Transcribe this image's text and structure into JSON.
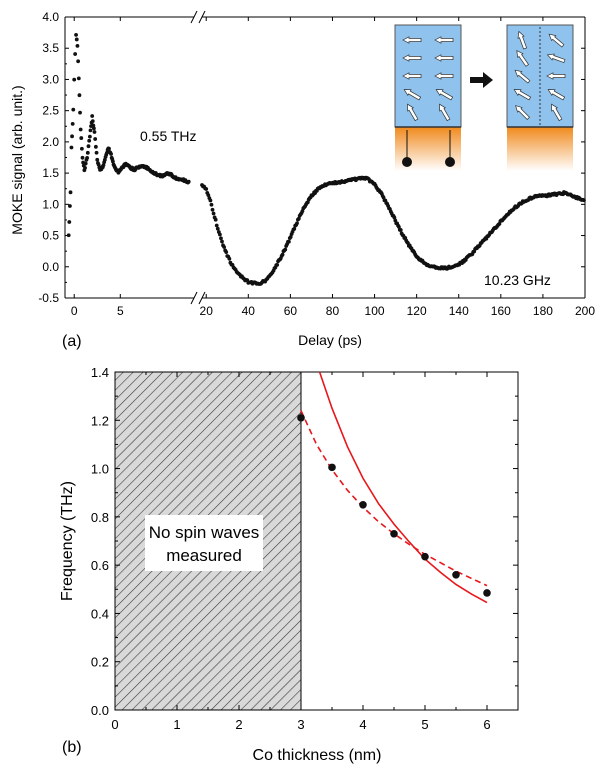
{
  "chart_data": [
    {
      "panel": "(a)",
      "type": "scatter",
      "xlabel": "Delay (ps)",
      "ylabel": "MOKE signal (arb. unit.)",
      "xaxis_broken": true,
      "x_segments": [
        {
          "range": [
            -1,
            13
          ],
          "ticks": [
            0,
            5
          ]
        },
        {
          "range": [
            18,
            200
          ],
          "ticks": [
            20,
            40,
            60,
            80,
            100,
            120,
            140,
            160,
            180,
            200
          ]
        }
      ],
      "ylim": [
        -0.5,
        4.0
      ],
      "yticks": [
        "-0.5",
        "0.0",
        "0.5",
        "1.0",
        "1.5",
        "2.0",
        "2.5",
        "3.0",
        "3.5",
        "4.0"
      ],
      "annotations": [
        "0.55 THz",
        "10.23 GHz"
      ],
      "segment1_points": [
        [
          -0.6,
          0.5
        ],
        [
          -0.4,
          1.2
        ],
        [
          -0.3,
          1.9
        ],
        [
          -0.1,
          2.5
        ],
        [
          0.0,
          3.0
        ],
        [
          0.1,
          3.4
        ],
        [
          0.2,
          3.7
        ],
        [
          0.35,
          3.55
        ],
        [
          0.5,
          3.0
        ],
        [
          0.7,
          2.2
        ],
        [
          0.9,
          1.75
        ],
        [
          1.1,
          1.55
        ],
        [
          1.4,
          1.75
        ],
        [
          1.7,
          2.1
        ],
        [
          1.95,
          2.4
        ],
        [
          2.2,
          2.15
        ],
        [
          2.5,
          1.7
        ],
        [
          2.8,
          1.55
        ],
        [
          3.1,
          1.6
        ],
        [
          3.4,
          1.75
        ],
        [
          3.7,
          1.9
        ],
        [
          4.0,
          1.8
        ],
        [
          4.4,
          1.58
        ],
        [
          4.8,
          1.52
        ],
        [
          5.2,
          1.58
        ],
        [
          5.6,
          1.65
        ],
        [
          6.0,
          1.6
        ],
        [
          6.5,
          1.55
        ],
        [
          7.0,
          1.6
        ],
        [
          7.5,
          1.6
        ],
        [
          8.0,
          1.58
        ],
        [
          8.5,
          1.52
        ],
        [
          9.0,
          1.48
        ],
        [
          9.5,
          1.45
        ],
        [
          10.0,
          1.5
        ],
        [
          10.5,
          1.48
        ],
        [
          11.0,
          1.42
        ],
        [
          11.5,
          1.4
        ],
        [
          12.0,
          1.38
        ],
        [
          12.5,
          1.35
        ]
      ],
      "segment2_points": [
        [
          18,
          1.3
        ],
        [
          20,
          1.25
        ],
        [
          22,
          1.05
        ],
        [
          24,
          0.8
        ],
        [
          26,
          0.55
        ],
        [
          28,
          0.35
        ],
        [
          30,
          0.18
        ],
        [
          32,
          0.05
        ],
        [
          34,
          -0.05
        ],
        [
          36,
          -0.14
        ],
        [
          38,
          -0.2
        ],
        [
          40,
          -0.24
        ],
        [
          42,
          -0.26
        ],
        [
          44,
          -0.27
        ],
        [
          46,
          -0.26
        ],
        [
          48,
          -0.22
        ],
        [
          50,
          -0.15
        ],
        [
          52,
          -0.05
        ],
        [
          55,
          0.12
        ],
        [
          58,
          0.32
        ],
        [
          61,
          0.55
        ],
        [
          64,
          0.78
        ],
        [
          67,
          0.98
        ],
        [
          70,
          1.13
        ],
        [
          73,
          1.24
        ],
        [
          76,
          1.3
        ],
        [
          80,
          1.34
        ],
        [
          84,
          1.36
        ],
        [
          88,
          1.38
        ],
        [
          92,
          1.41
        ],
        [
          96,
          1.42
        ],
        [
          100,
          1.32
        ],
        [
          103,
          1.18
        ],
        [
          106,
          1.0
        ],
        [
          109,
          0.8
        ],
        [
          112,
          0.6
        ],
        [
          115,
          0.42
        ],
        [
          118,
          0.26
        ],
        [
          121,
          0.13
        ],
        [
          124,
          0.05
        ],
        [
          127,
          0.01
        ],
        [
          130,
          -0.01
        ],
        [
          134,
          -0.02
        ],
        [
          138,
          0.0
        ],
        [
          142,
          0.08
        ],
        [
          146,
          0.2
        ],
        [
          150,
          0.35
        ],
        [
          154,
          0.5
        ],
        [
          158,
          0.65
        ],
        [
          162,
          0.8
        ],
        [
          166,
          0.93
        ],
        [
          170,
          1.03
        ],
        [
          174,
          1.1
        ],
        [
          178,
          1.13
        ],
        [
          182,
          1.14
        ],
        [
          186,
          1.16
        ],
        [
          190,
          1.18
        ],
        [
          194,
          1.14
        ],
        [
          198,
          1.08
        ],
        [
          200,
          1.05
        ]
      ]
    },
    {
      "panel": "(b)",
      "type": "scatter",
      "xlabel": "Co thickness (nm)",
      "ylabel": "Frequency (THz)",
      "xlim": [
        0,
        6.5
      ],
      "ylim": [
        0.0,
        1.4
      ],
      "xticks": [
        "0",
        "1",
        "2",
        "3",
        "4",
        "5",
        "6"
      ],
      "yticks": [
        "0.0",
        "0.2",
        "0.4",
        "0.6",
        "0.8",
        "1.0",
        "1.2",
        "1.4"
      ],
      "shaded_region": {
        "x_from": 0,
        "x_to": 3,
        "label_lines": [
          "No spin waves",
          "measured"
        ]
      },
      "points": {
        "x": [
          3.0,
          3.5,
          4.0,
          4.5,
          5.0,
          5.5,
          6.0
        ],
        "y": [
          1.21,
          1.005,
          0.85,
          0.73,
          0.635,
          0.56,
          0.485
        ]
      },
      "dashed_fit": {
        "x": [
          3.0,
          3.25,
          3.5,
          3.75,
          4.0,
          4.25,
          4.5,
          4.75,
          5.0,
          5.25,
          5.5,
          5.75,
          6.0
        ],
        "y": [
          1.24,
          1.1,
          0.995,
          0.91,
          0.84,
          0.78,
          0.73,
          0.685,
          0.645,
          0.61,
          0.575,
          0.545,
          0.515
        ]
      },
      "solid_fit": {
        "x": [
          3.3,
          3.5,
          3.75,
          4.0,
          4.25,
          4.5,
          4.75,
          5.0,
          5.25,
          5.5,
          5.75,
          6.0
        ],
        "y": [
          1.4,
          1.25,
          1.09,
          0.96,
          0.855,
          0.77,
          0.695,
          0.625,
          0.57,
          0.52,
          0.48,
          0.445
        ]
      },
      "colors": {
        "fit": "#e8171b",
        "points": "#111111",
        "hatch_bg": "#d9d9d9"
      }
    }
  ]
}
